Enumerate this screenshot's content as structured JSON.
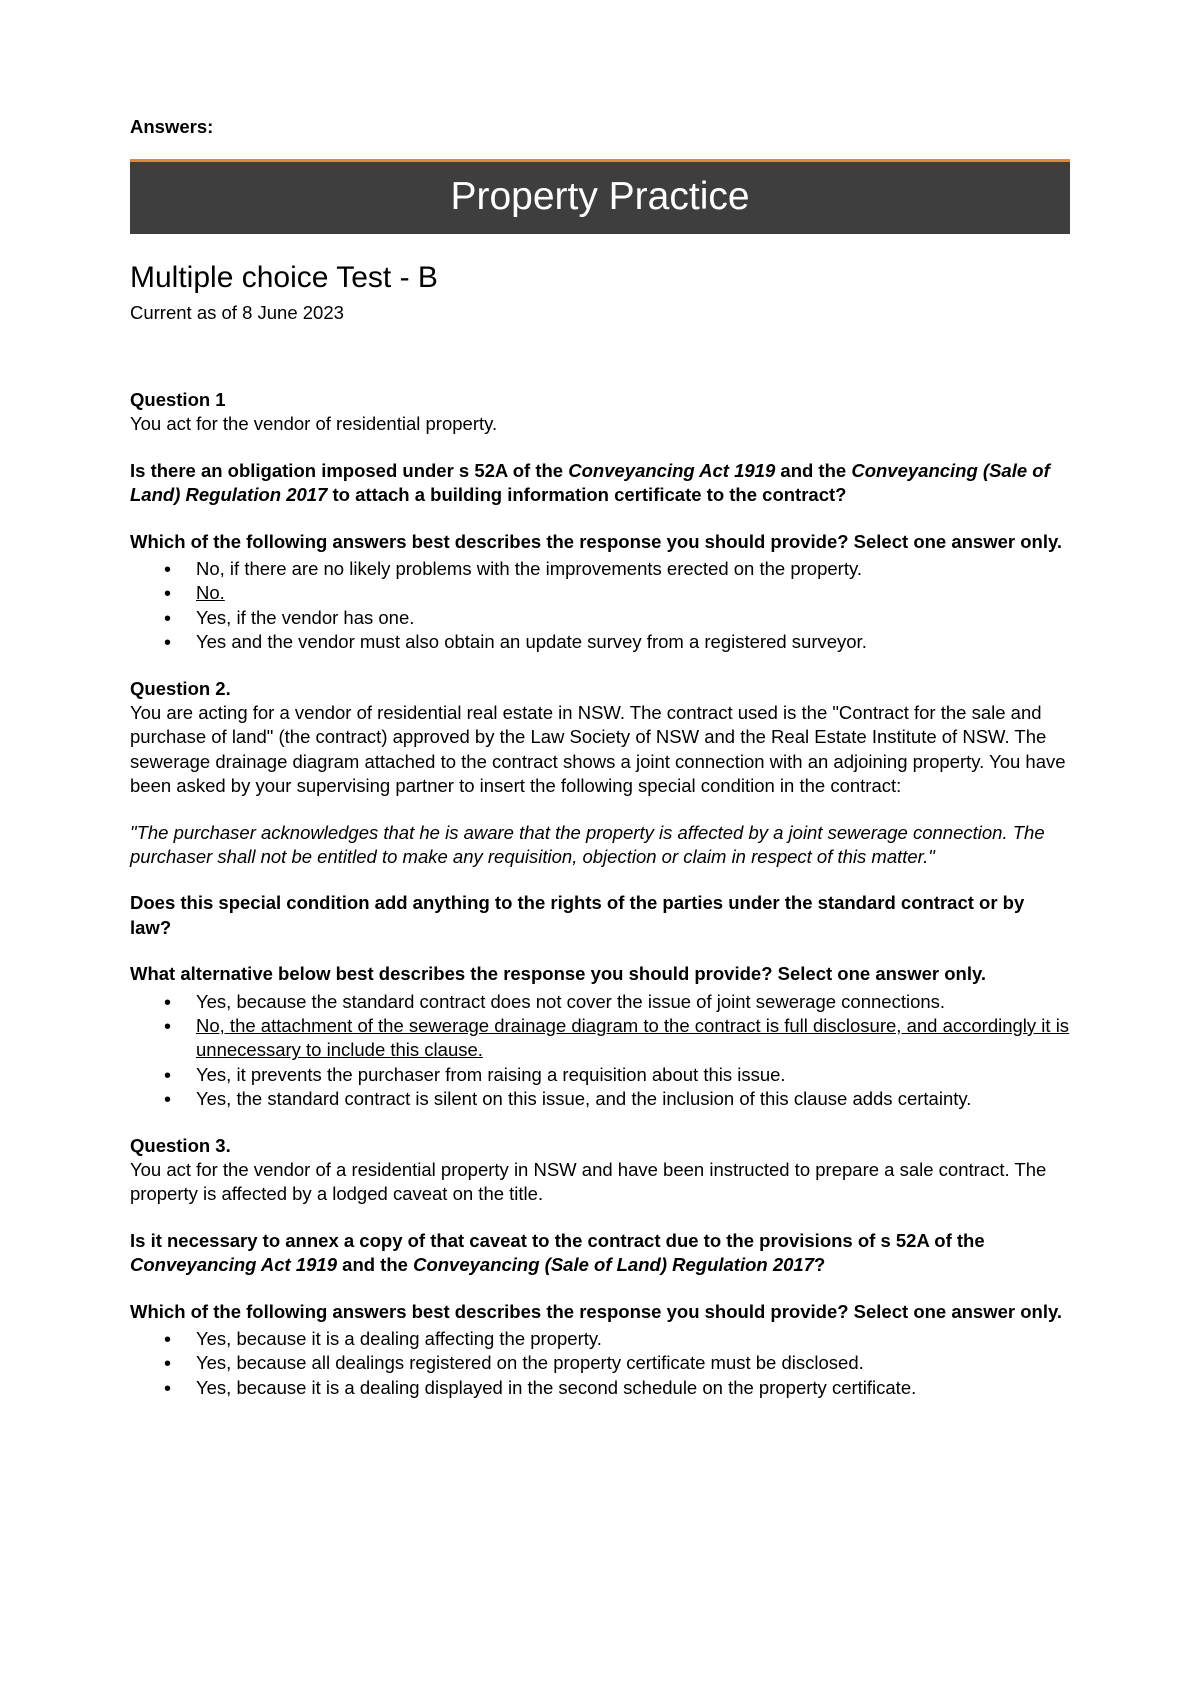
{
  "header": {
    "answers_label": "Answers:",
    "banner_title": "Property Practice",
    "subtitle": "Multiple choice Test - B",
    "date": "Current as of 8 June 2023"
  },
  "q1": {
    "heading": "Question 1",
    "intro": "You act for the vendor of residential property.",
    "prompt_a_1": "Is there an obligation imposed under s 52A of the ",
    "prompt_a_act1": "Conveyancing Act 1919",
    "prompt_a_2": " and the ",
    "prompt_a_act2": "Conveyancing (Sale of Land) Regulation 2017",
    "prompt_a_3": " to attach a building information certificate to the contract?",
    "prompt_b": "Which of the following answers best describes the response you should provide? Select one answer only.",
    "opts": [
      "No, if there are no likely problems with the improvements erected on the property.",
      "No.",
      "Yes, if the vendor has one.",
      "Yes and the vendor must also obtain an update survey from a registered surveyor."
    ]
  },
  "q2": {
    "heading": "Question 2.",
    "intro": "You are acting for a vendor of residential real estate in NSW. The contract used is the \"Contract for the sale and purchase of land\" (the contract) approved by the Law Society of NSW and the Real Estate Institute of NSW. The sewerage drainage diagram attached to the contract shows a joint connection with an adjoining property. You have been asked by your supervising partner to insert the following special condition in the contract:",
    "quote": "\"The purchaser acknowledges that he is aware that the property is affected by a joint sewerage connection. The purchaser shall not be entitled to make any requisition, objection or claim in respect of this matter.\"",
    "prompt_a": "Does this special condition add anything to the rights of the parties under the standard contract or by law?",
    "prompt_b": "What alternative below best describes the response you should provide? Select one answer only.",
    "opts": [
      "Yes, because the standard contract does not cover the issue of joint sewerage connections.",
      "No, the attachment of the sewerage drainage diagram to the contract is full disclosure, and accordingly it is unnecessary to include this clause.",
      "Yes, it prevents the purchaser from raising a requisition about this issue.",
      "Yes, the standard contract is silent on this issue, and the inclusion of this clause adds certainty."
    ]
  },
  "q3": {
    "heading": "Question 3.",
    "intro": "You act for the vendor of a residential property in NSW and have been instructed to prepare a sale contract.  The property is affected by a lodged caveat on the title.",
    "prompt_a_1": "Is it necessary to annex a copy of that caveat to the contract due to the provisions of s 52A of the ",
    "prompt_a_act1": "Conveyancing Act 1919",
    "prompt_a_2": "  and the ",
    "prompt_a_act2": "Conveyancing (Sale of Land) Regulation 2017",
    "prompt_a_3": "?",
    "prompt_b": "Which of the following answers best describes the response you should provide? Select one answer only.",
    "opts": [
      "Yes, because it is a dealing affecting the property.",
      "Yes, because all dealings registered on the property certificate must be disclosed.",
      "Yes, because it is a dealing displayed in the second schedule on the property certificate."
    ]
  },
  "style": {
    "banner_bg": "#3e3e3e",
    "banner_border_top": "#e08a2e",
    "banner_text": "#ffffff",
    "body_text": "#000000",
    "body_bg": "#ffffff"
  }
}
